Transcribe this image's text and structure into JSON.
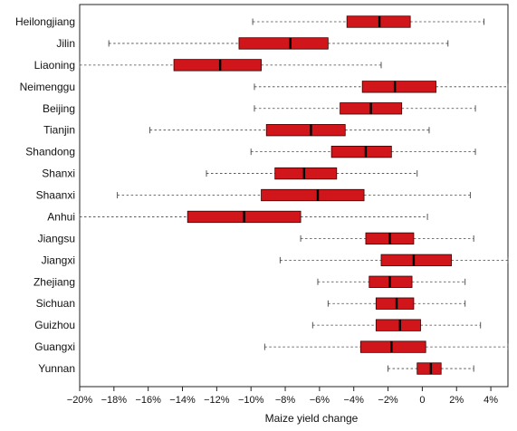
{
  "chart_data": {
    "type": "boxplot",
    "orientation": "horizontal",
    "xlabel": "Maize yield change",
    "xlim": [
      -20,
      5
    ],
    "x_ticks": [
      -20,
      -18,
      -16,
      -14,
      -12,
      -10,
      -8,
      -6,
      -4,
      -2,
      0,
      2,
      4
    ],
    "x_tick_labels": [
      "−20%",
      "−18%",
      "−16%",
      "−14%",
      "−12%",
      "−10%",
      "−8%",
      "−6%",
      "−4%",
      "−2%",
      "0",
      "2%",
      "4%"
    ],
    "box_color": "#d0151b",
    "box_edge_color": "#3a0000",
    "median_color": "#000000",
    "whisker_style": "dashed",
    "grid": false,
    "categories": [
      "Heilongjiang",
      "Jilin",
      "Liaoning",
      "Neimenggu",
      "Beijing",
      "Tianjin",
      "Shandong",
      "Shanxi",
      "Shaanxi",
      "Anhui",
      "Jiangsu",
      "Jiangxi",
      "Zhejiang",
      "Sichuan",
      "Guizhou",
      "Guangxi",
      "Yunnan"
    ],
    "boxes": [
      {
        "label": "Heilongjiang",
        "whislo": -9.9,
        "q1": -4.4,
        "med": -2.5,
        "q3": -0.7,
        "whishi": 3.6
      },
      {
        "label": "Jilin",
        "whislo": -18.3,
        "q1": -10.7,
        "med": -7.7,
        "q3": -5.5,
        "whishi": 1.5
      },
      {
        "label": "Liaoning",
        "whislo": -20.0,
        "q1": -14.5,
        "med": -11.8,
        "q3": -9.4,
        "whishi": -2.4
      },
      {
        "label": "Neimenggu",
        "whislo": -9.8,
        "q1": -3.5,
        "med": -1.6,
        "q3": 0.8,
        "whishi": 5.0
      },
      {
        "label": "Beijing",
        "whislo": -9.8,
        "q1": -4.8,
        "med": -3.0,
        "q3": -1.2,
        "whishi": 3.1
      },
      {
        "label": "Tianjin",
        "whislo": -15.9,
        "q1": -9.1,
        "med": -6.5,
        "q3": -4.5,
        "whishi": 0.4
      },
      {
        "label": "Shandong",
        "whislo": -10.0,
        "q1": -5.3,
        "med": -3.3,
        "q3": -1.8,
        "whishi": 3.1
      },
      {
        "label": "Shanxi",
        "whislo": -12.6,
        "q1": -8.6,
        "med": -6.9,
        "q3": -5.0,
        "whishi": -0.3
      },
      {
        "label": "Shaanxi",
        "whislo": -17.8,
        "q1": -9.4,
        "med": -6.1,
        "q3": -3.4,
        "whishi": 2.8
      },
      {
        "label": "Anhui",
        "whislo": -20.0,
        "q1": -13.7,
        "med": -10.4,
        "q3": -7.1,
        "whishi": 0.3
      },
      {
        "label": "Jiangsu",
        "whislo": -7.1,
        "q1": -3.3,
        "med": -1.9,
        "q3": -0.5,
        "whishi": 3.0
      },
      {
        "label": "Jiangxi",
        "whislo": -8.3,
        "q1": -2.4,
        "med": -0.5,
        "q3": 1.7,
        "whishi": 5.0
      },
      {
        "label": "Zhejiang",
        "whislo": -6.1,
        "q1": -3.1,
        "med": -1.9,
        "q3": -0.6,
        "whishi": 2.5
      },
      {
        "label": "Sichuan",
        "whislo": -5.5,
        "q1": -2.7,
        "med": -1.5,
        "q3": -0.5,
        "whishi": 2.5
      },
      {
        "label": "Guizhou",
        "whislo": -6.4,
        "q1": -2.7,
        "med": -1.3,
        "q3": -0.1,
        "whishi": 3.4
      },
      {
        "label": "Guangxi",
        "whislo": -9.2,
        "q1": -3.6,
        "med": -1.8,
        "q3": 0.2,
        "whishi": 5.0
      },
      {
        "label": "Yunnan",
        "whislo": -2.0,
        "q1": -0.3,
        "med": 0.5,
        "q3": 1.1,
        "whishi": 3.0
      }
    ]
  }
}
